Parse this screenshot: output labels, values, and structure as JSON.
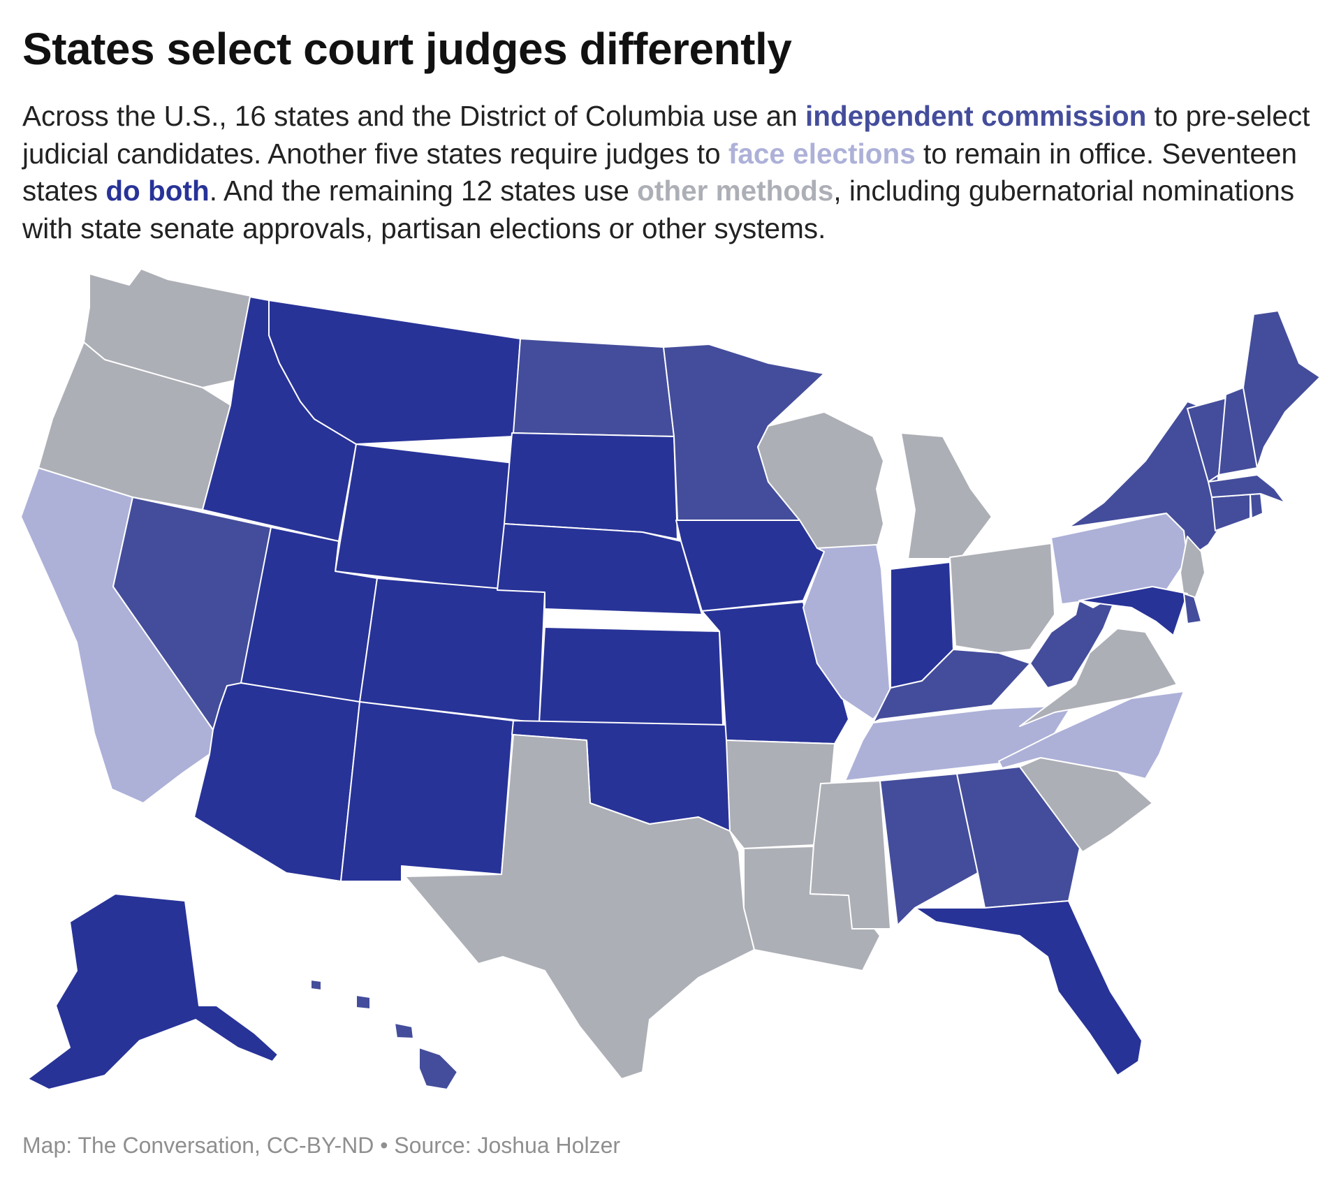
{
  "title": "States select court judges differently",
  "intro": {
    "t1": "Across the U.S., 16 states and the District of Columbia use an ",
    "commission": "independent commission",
    "t2": " to pre-select judicial candidates. Another five states require judges to ",
    "elections": "face elections",
    "t3": " to remain in office. Seventeen states ",
    "both": "do both",
    "t4": ". And the remaining 12 states use ",
    "other": "other methods",
    "t5": ", including gubernatorial nominations with state senate approvals, partisan elections or other systems."
  },
  "colors": {
    "independent_commission": "#444d9b",
    "face_elections": "#adb1d8",
    "do_both": "#283398",
    "other_methods": "#adafb6"
  },
  "categories": {
    "independent_commission": [
      "NV",
      "ND",
      "MN",
      "NY",
      "VT",
      "NH",
      "ME",
      "MA",
      "CT",
      "RI",
      "DE",
      "KY",
      "WV",
      "AL",
      "GA",
      "HI",
      "DC"
    ],
    "face_elections": [
      "CA",
      "IL",
      "PA",
      "TN",
      "NC"
    ],
    "do_both": [
      "MT",
      "ID",
      "WY",
      "SD",
      "NE",
      "UT",
      "CO",
      "AZ",
      "NM",
      "KS",
      "OK",
      "IA",
      "MO",
      "IN",
      "MD",
      "FL",
      "AK"
    ],
    "other_methods": [
      "WA",
      "OR",
      "TX",
      "AR",
      "LA",
      "MS",
      "WI",
      "MI",
      "OH",
      "VA",
      "SC",
      "NJ"
    ]
  },
  "source": "Map: The Conversation, CC-BY-ND • Source: Joshua Holzer"
}
